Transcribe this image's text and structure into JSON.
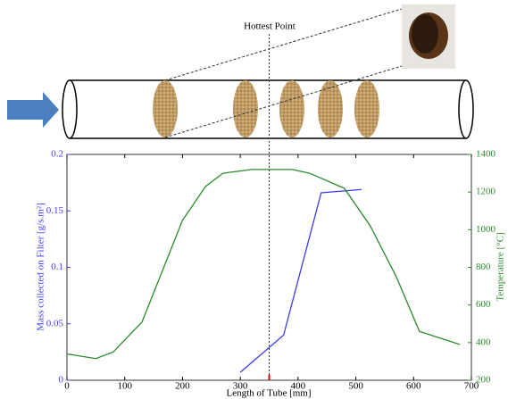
{
  "chart_data": {
    "type": "line",
    "annotation": {
      "text": "Hottest Point",
      "x": 350
    },
    "xlabel": "Length of Tube [mm]",
    "ylabel": "Mass collected on Filter [g/s.m²]",
    "y2label": "Temperature [°C]",
    "xlim": [
      0,
      700
    ],
    "xticks": [
      0,
      100,
      200,
      300,
      400,
      500,
      600,
      700
    ],
    "ylim": [
      0,
      0.2
    ],
    "yticks": [
      0,
      0.05,
      0.1,
      0.15,
      0.2
    ],
    "y2lim": [
      200,
      1400
    ],
    "y2ticks": [
      200,
      400,
      600,
      800,
      1000,
      1200,
      1400
    ],
    "series": [
      {
        "color": "#3c3cf0",
        "x": [
          300,
          375,
          440,
          510
        ],
        "values": [
          0.007,
          0.04,
          0.166,
          0.169
        ]
      },
      {
        "color": "#2b8a2b",
        "axis": "y2",
        "x": [
          0,
          50,
          80,
          130,
          200,
          240,
          270,
          320,
          390,
          420,
          480,
          525,
          570,
          610,
          680
        ],
        "values": [
          340,
          315,
          350,
          510,
          1050,
          1230,
          1300,
          1320,
          1320,
          1300,
          1220,
          1020,
          750,
          460,
          390
        ]
      }
    ]
  }
}
